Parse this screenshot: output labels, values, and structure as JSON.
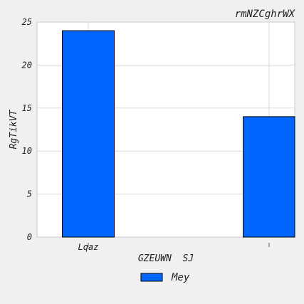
{
  "chart_data": {
    "type": "bar",
    "title": "rmNZCghrWX",
    "xlabel": "GZEUWN  SJ",
    "ylabel": "RgTikVT",
    "categories": [
      "Lqaz",
      ""
    ],
    "series": [
      {
        "name": "Mey",
        "values": [
          24,
          14
        ],
        "color": "#0066ff"
      }
    ],
    "ylim": [
      0,
      25
    ],
    "yticks": [
      0,
      5,
      10,
      15,
      20,
      25
    ],
    "grid": true,
    "legend": "bottom-center"
  }
}
